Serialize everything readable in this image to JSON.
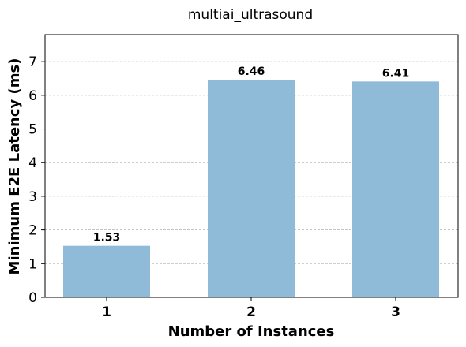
{
  "chart_data": {
    "type": "bar",
    "title": "multiai_ultrasound",
    "xlabel": "Number of Instances",
    "ylabel": "Minimum E2E Latency (ms)",
    "categories": [
      "1",
      "2",
      "3"
    ],
    "values": [
      1.53,
      6.46,
      6.41
    ],
    "data_labels": [
      "1.53",
      "6.46",
      "6.41"
    ],
    "ylim": [
      0,
      7.8
    ],
    "yticks": [
      0,
      1,
      2,
      3,
      4,
      5,
      6,
      7
    ],
    "grid": "y-dashed",
    "bar_color": "#8fbad8"
  }
}
